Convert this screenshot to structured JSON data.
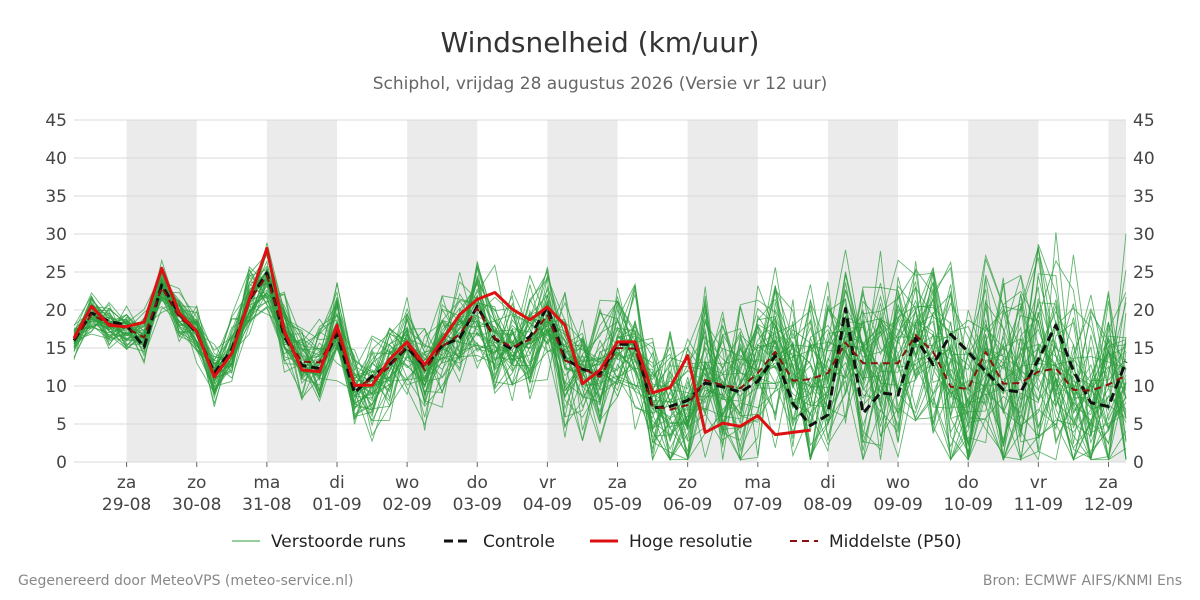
{
  "chart_data": {
    "type": "line",
    "title": "Windsnelheid (km/uur)",
    "subtitle": "Schiphol, vrijdag 28 augustus 2026 (Versie vr 12 uur)",
    "ylim": [
      0,
      45
    ],
    "yticks": [
      0,
      5,
      10,
      15,
      20,
      25,
      30,
      35,
      40,
      45
    ],
    "xlim": [
      0,
      15
    ],
    "day_labels": [
      {
        "x": 0.75,
        "day": "za",
        "date": "29-08"
      },
      {
        "x": 1.75,
        "day": "zo",
        "date": "30-08"
      },
      {
        "x": 2.75,
        "day": "ma",
        "date": "31-08"
      },
      {
        "x": 3.75,
        "day": "di",
        "date": "01-09"
      },
      {
        "x": 4.75,
        "day": "wo",
        "date": "02-09"
      },
      {
        "x": 5.75,
        "day": "do",
        "date": "03-09"
      },
      {
        "x": 6.75,
        "day": "vr",
        "date": "04-09"
      },
      {
        "x": 7.75,
        "day": "za",
        "date": "05-09"
      },
      {
        "x": 8.75,
        "day": "zo",
        "date": "06-09"
      },
      {
        "x": 9.75,
        "day": "ma",
        "date": "07-09"
      },
      {
        "x": 10.75,
        "day": "di",
        "date": "08-09"
      },
      {
        "x": 11.75,
        "day": "wo",
        "date": "09-09"
      },
      {
        "x": 12.75,
        "day": "do",
        "date": "10-09"
      },
      {
        "x": 13.75,
        "day": "vr",
        "date": "11-09"
      },
      {
        "x": 14.75,
        "day": "za",
        "date": "12-09"
      }
    ],
    "shaded_days": [
      [
        0.75,
        1.75
      ],
      [
        2.75,
        3.75
      ],
      [
        4.75,
        5.75
      ],
      [
        6.75,
        7.75
      ],
      [
        8.75,
        9.75
      ],
      [
        10.75,
        11.75
      ],
      [
        12.75,
        13.75
      ],
      [
        14.75,
        15
      ]
    ],
    "grid": true,
    "legend_position": "bottom",
    "series": [
      {
        "key": "hires",
        "name": "Hoge resolutie",
        "color": "#dd1111",
        "style": "solid",
        "x": [
          0,
          0.25,
          0.5,
          0.75,
          1,
          1.25,
          1.5,
          1.75,
          2,
          2.25,
          2.5,
          2.75,
          3,
          3.25,
          3.5,
          3.75,
          4,
          4.25,
          4.5,
          4.75,
          5,
          5.25,
          5.5,
          5.75,
          6,
          6.25,
          6.5,
          6.75,
          7,
          7.25,
          7.5,
          7.75,
          8,
          8.25,
          8.5,
          8.75,
          9,
          9.25,
          9.5,
          9.75,
          10,
          10.25,
          10.5
        ],
        "y": [
          16.3,
          20.5,
          18,
          17.8,
          18.4,
          25.5,
          19.6,
          17.2,
          11.2,
          14.3,
          21.4,
          28.1,
          17.2,
          12.1,
          11.9,
          18,
          10.1,
          10.1,
          13.5,
          15.8,
          12.8,
          16,
          19.4,
          21.4,
          22.3,
          20.1,
          18.7,
          20.4,
          18,
          10.3,
          12.1,
          15.8,
          15.8,
          9.1,
          9.8,
          14,
          3.9,
          5.1,
          4.7,
          6.1,
          3.6,
          3.9,
          4.2
        ]
      },
      {
        "key": "control",
        "name": "Controle",
        "color": "#111111",
        "style": "dash",
        "x": [
          0,
          0.25,
          0.5,
          0.75,
          1,
          1.25,
          1.5,
          1.75,
          2,
          2.25,
          2.5,
          2.75,
          3,
          3.25,
          3.5,
          3.75,
          4,
          4.25,
          4.5,
          4.75,
          5,
          5.25,
          5.5,
          5.75,
          6,
          6.25,
          6.5,
          6.75,
          7,
          7.25,
          7.5,
          7.75,
          8,
          8.25,
          8.5,
          8.75,
          9,
          9.25,
          9.5,
          9.75,
          10,
          10.25,
          10.5,
          10.75,
          11,
          11.25,
          11.5,
          11.75,
          12,
          12.25,
          12.5,
          12.75,
          13,
          13.25,
          13.5,
          13.75,
          14,
          14.25,
          14.5,
          14.75,
          15
        ],
        "y": [
          16,
          19.6,
          18.5,
          18,
          15.1,
          23.3,
          19.5,
          17,
          11.7,
          14.8,
          21.3,
          24.9,
          16.5,
          12.7,
          12.3,
          16.9,
          9.1,
          11.3,
          12.8,
          15.1,
          12.5,
          15.3,
          16.3,
          20.5,
          16.2,
          14.8,
          16.5,
          20.4,
          13.6,
          12.2,
          11.6,
          15.5,
          15.5,
          7.1,
          7.3,
          8.1,
          10.4,
          9.9,
          9.2,
          10.6,
          14,
          7.7,
          4.8,
          6.2,
          20.2,
          6.4,
          9.1,
          8.8,
          16.3,
          12.8,
          16.8,
          14.5,
          11.9,
          9.5,
          9.2,
          13.5,
          18,
          12,
          7.8,
          7.3,
          13.2
        ]
      },
      {
        "key": "p50",
        "name": "Middelste (P50)",
        "color": "#8b1010",
        "style": "dash",
        "x": [
          0,
          0.25,
          0.5,
          0.75,
          1,
          1.25,
          1.5,
          1.75,
          2,
          2.25,
          2.5,
          2.75,
          3,
          3.25,
          3.5,
          3.75,
          4,
          4.25,
          4.5,
          4.75,
          5,
          5.25,
          5.5,
          5.75,
          6,
          6.25,
          6.5,
          6.75,
          7,
          7.25,
          7.5,
          7.75,
          8,
          8.25,
          8.5,
          8.75,
          9,
          9.25,
          9.5,
          9.75,
          10,
          10.25,
          10.5,
          10.75,
          11,
          11.25,
          11.5,
          11.75,
          12,
          12.25,
          12.5,
          12.75,
          13,
          13.25,
          13.5,
          13.75,
          14,
          14.25,
          14.5,
          14.75,
          15
        ],
        "y": [
          16.1,
          19.4,
          18.2,
          17.6,
          16.4,
          23,
          19,
          17.3,
          11.4,
          14.4,
          21.2,
          24.5,
          16.8,
          13.2,
          13.1,
          17.3,
          9.9,
          10.8,
          12.5,
          15.4,
          12.1,
          15.2,
          16.8,
          20.2,
          16.3,
          15.1,
          16.1,
          19.4,
          13.4,
          12.3,
          11.2,
          15,
          14.9,
          7.4,
          6.9,
          7.5,
          10.8,
          10.1,
          9.7,
          11.7,
          14.5,
          10.7,
          10.9,
          11.7,
          15.7,
          13,
          13,
          13,
          16.7,
          14.5,
          9.9,
          9.6,
          14.5,
          10.3,
          10.4,
          11.9,
          12.3,
          9.5,
          9.4,
          10.2,
          11.4
        ]
      }
    ]
  },
  "legend": {
    "ensemble_label": "Verstoorde runs",
    "control_label": "Controle",
    "hires_label": "Hoge resolutie",
    "p50_label": "Middelste (P50)"
  },
  "footer": {
    "left": "Gegenereerd door MeteoVPS (meteo-service.nl)",
    "right": "Bron: ECMWF AIFS/KNMI Ens"
  },
  "colors": {
    "ensemble": "#2e9e3e",
    "shade": "#ebebeb",
    "grid": "#d9d9d9"
  }
}
